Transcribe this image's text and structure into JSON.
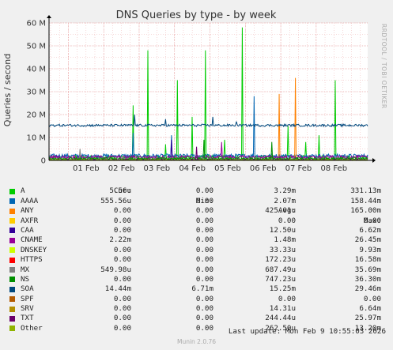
{
  "chart_data": {
    "type": "line",
    "title": "DNS Queries by type - by week",
    "ylabel": "Queries / second",
    "ylim": [
      0,
      60000000
    ],
    "y_ticks": [
      0,
      10000000,
      20000000,
      30000000,
      40000000,
      50000000,
      60000000
    ],
    "y_tick_labels": [
      "0",
      "10 M",
      "20 M",
      "30 M",
      "40 M",
      "50 M",
      "60 M"
    ],
    "x_range": [
      "2026-01-31T10:55",
      "2026-02-09T10:55"
    ],
    "x_ticks": [
      "2026-02-01",
      "2026-02-02",
      "2026-02-03",
      "2026-02-04",
      "2026-02-05",
      "2026-02-06",
      "2026-02-07",
      "2026-02-08"
    ],
    "x_tick_labels": [
      "01 Feb",
      "02 Feb",
      "03 Feb",
      "04 Feb",
      "05 Feb",
      "06 Feb",
      "07 Feb",
      "08 Feb"
    ],
    "grid": true,
    "series": [
      {
        "name": "A",
        "color": "#00cc00",
        "baseline": 1300000,
        "noise": 900000,
        "spikes": [
          [
            "2026-02-02T20:00",
            24000000
          ],
          [
            "2026-02-03T06:00",
            48000000
          ],
          [
            "2026-02-03T18:00",
            7000000
          ],
          [
            "2026-02-04T02:00",
            35000000
          ],
          [
            "2026-02-04T12:00",
            19000000
          ],
          [
            "2026-02-04T21:00",
            48000000
          ],
          [
            "2026-02-05T10:00",
            9000000
          ],
          [
            "2026-02-05T22:00",
            58000000
          ],
          [
            "2026-02-07T05:00",
            15000000
          ],
          [
            "2026-02-07T17:00",
            8000000
          ],
          [
            "2026-02-08T02:00",
            11000000
          ],
          [
            "2026-02-08T13:00",
            35000000
          ]
        ]
      },
      {
        "name": "AAAA",
        "color": "#0066b3",
        "baseline": 2000000,
        "noise": 800000,
        "spikes": [
          [
            "2026-02-02T20:00",
            12000000
          ],
          [
            "2026-02-03T22:00",
            11000000
          ],
          [
            "2026-02-06T06:00",
            28000000
          ]
        ]
      },
      {
        "name": "ANY",
        "color": "#ff8000",
        "baseline": 0,
        "noise": 50000,
        "spikes": [
          [
            "2026-02-06T23:00",
            29000000
          ],
          [
            "2026-02-07T10:00",
            36000000
          ]
        ]
      },
      {
        "name": "AXFR",
        "color": "#ffcc00",
        "baseline": 0,
        "noise": 0,
        "spikes": []
      },
      {
        "name": "CAA",
        "color": "#330099",
        "baseline": 200000,
        "noise": 300000,
        "spikes": [
          [
            "2026-02-03T22:00",
            9000000
          ]
        ]
      },
      {
        "name": "CNAME",
        "color": "#990099",
        "baseline": 1400000,
        "noise": 700000,
        "spikes": [
          [
            "2026-02-05T08:00",
            8000000
          ]
        ]
      },
      {
        "name": "DNSKEY",
        "color": "#ccff00",
        "baseline": 0,
        "noise": 100000,
        "spikes": []
      },
      {
        "name": "HTTPS",
        "color": "#ff0000",
        "baseline": 100000,
        "noise": 150000,
        "spikes": []
      },
      {
        "name": "MX",
        "color": "#808080",
        "baseline": 600000,
        "noise": 500000,
        "spikes": [
          [
            "2026-02-01T08:00",
            5000000
          ]
        ]
      },
      {
        "name": "NS",
        "color": "#008f00",
        "baseline": 700000,
        "noise": 500000,
        "spikes": [
          [
            "2026-02-04T20:00",
            9000000
          ],
          [
            "2026-02-06T18:00",
            8000000
          ]
        ]
      },
      {
        "name": "SOA",
        "color": "#00487d",
        "baseline": 15300000,
        "noise": 500000,
        "spikes": [
          [
            "2026-02-02T21:00",
            20000000
          ],
          [
            "2026-02-03T18:00",
            18000000
          ],
          [
            "2026-02-05T02:00",
            19000000
          ],
          [
            "2026-02-05T18:00",
            17000000
          ]
        ]
      },
      {
        "name": "SPF",
        "color": "#b35a00",
        "baseline": 0,
        "noise": 0,
        "spikes": []
      },
      {
        "name": "SRV",
        "color": "#b38f00",
        "baseline": 0,
        "noise": 100000,
        "spikes": []
      },
      {
        "name": "TXT",
        "color": "#6b006b",
        "baseline": 200000,
        "noise": 300000,
        "spikes": [
          [
            "2026-02-04T15:00",
            6000000
          ]
        ]
      },
      {
        "name": "Other",
        "color": "#8fb300",
        "baseline": 200000,
        "noise": 200000,
        "spikes": []
      }
    ]
  },
  "watermark": "RRDTOOL / TOBI OETIKER",
  "legend": {
    "headers": {
      "cur": "Cur:",
      "min": "Min:",
      "avg": "Avg:",
      "max": "Max:"
    },
    "rows": [
      {
        "name": "A",
        "color": "#00cc00",
        "cur": "5.56u",
        "min": "0.00",
        "avg": "3.29m",
        "max": "331.13m"
      },
      {
        "name": "AAAA",
        "color": "#0066b3",
        "cur": "555.56u",
        "min": "0.00",
        "avg": "2.07m",
        "max": "158.44m"
      },
      {
        "name": "ANY",
        "color": "#ff8000",
        "cur": "0.00",
        "min": "0.00",
        "avg": "425.01u",
        "max": "165.00m"
      },
      {
        "name": "AXFR",
        "color": "#ffcc00",
        "cur": "0.00",
        "min": "0.00",
        "avg": "0.00",
        "max": "0.00"
      },
      {
        "name": "CAA",
        "color": "#330099",
        "cur": "0.00",
        "min": "0.00",
        "avg": "12.50u",
        "max": "6.62m"
      },
      {
        "name": "CNAME",
        "color": "#990099",
        "cur": "2.22m",
        "min": "0.00",
        "avg": "1.48m",
        "max": "26.45m"
      },
      {
        "name": "DNSKEY",
        "color": "#ccff00",
        "cur": "0.00",
        "min": "0.00",
        "avg": "33.33u",
        "max": "9.93m"
      },
      {
        "name": "HTTPS",
        "color": "#ff0000",
        "cur": "0.00",
        "min": "0.00",
        "avg": "172.23u",
        "max": "16.58m"
      },
      {
        "name": "MX",
        "color": "#808080",
        "cur": "549.98u",
        "min": "0.00",
        "avg": "687.49u",
        "max": "35.69m"
      },
      {
        "name": "NS",
        "color": "#008f00",
        "cur": "0.00",
        "min": "0.00",
        "avg": "747.23u",
        "max": "36.30m"
      },
      {
        "name": "SOA",
        "color": "#00487d",
        "cur": "14.44m",
        "min": "6.71m",
        "avg": "15.25m",
        "max": "29.46m"
      },
      {
        "name": "SPF",
        "color": "#b35a00",
        "cur": "0.00",
        "min": "0.00",
        "avg": "0.00",
        "max": "0.00"
      },
      {
        "name": "SRV",
        "color": "#b38f00",
        "cur": "0.00",
        "min": "0.00",
        "avg": "14.31u",
        "max": "6.64m"
      },
      {
        "name": "TXT",
        "color": "#6b006b",
        "cur": "0.00",
        "min": "0.00",
        "avg": "244.44u",
        "max": "25.97m"
      },
      {
        "name": "Other",
        "color": "#8fb300",
        "cur": "0.00",
        "min": "0.00",
        "avg": "262.50u",
        "max": "13.20m"
      }
    ]
  },
  "last_update": "Last update: Mon Feb  9 10:55:03 2026",
  "munin_version": "Munin 2.0.76"
}
